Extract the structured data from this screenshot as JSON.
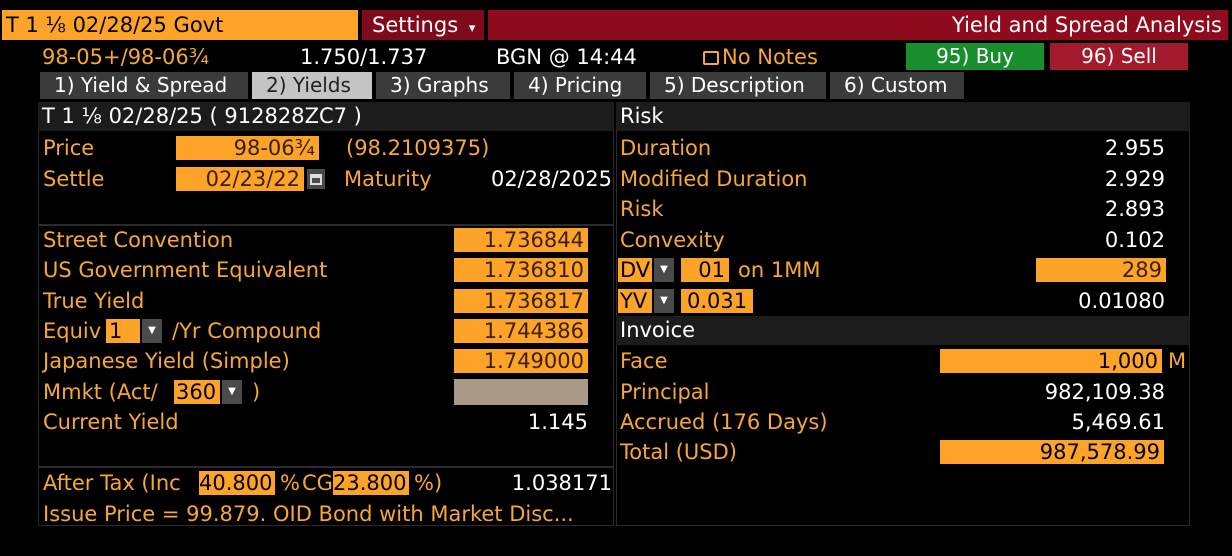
{
  "title_bar": {
    "security": "T 1 ⅛ 02/28/25 Govt",
    "settings_label": "Settings",
    "settings_arrow": "▾",
    "function_title": "Yield and Spread Analysis"
  },
  "quote_bar": {
    "bid_ask": "98-05+/98-06¾",
    "yields": "1.750/1.737",
    "source_time": "BGN @ 14:44",
    "notes": "No Notes",
    "buy_label": "95) Buy",
    "sell_label": "96) Sell"
  },
  "tabs": [
    {
      "label": "1) Yield & Spread"
    },
    {
      "label": "2) Yields",
      "active": true
    },
    {
      "label": "3) Graphs"
    },
    {
      "label": "4) Pricing"
    },
    {
      "label": "5) Description"
    },
    {
      "label": "6) Custom"
    }
  ],
  "bond_panel": {
    "header": "T 1 ⅛ 02/28/25 ( 912828ZC7 )",
    "price_label": "Price",
    "price_value": "98-06¾",
    "price_decimal": "(98.2109375)",
    "settle_label": "Settle",
    "settle_value": "02/23/22",
    "maturity_label": "Maturity",
    "maturity_value": "02/28/2025"
  },
  "yields": {
    "street_label": "Street Convention",
    "street_value": "1.736844",
    "usgov_label": "US Government Equivalent",
    "usgov_value": "1.736810",
    "true_label": "True Yield",
    "true_value": "1.736817",
    "equiv_label": "Equiv",
    "equiv_freq": "1",
    "equiv_suffix": "/Yr Compound",
    "equiv_value": "1.744386",
    "japanese_label": "Japanese Yield (Simple)",
    "japanese_value": "1.749000",
    "mmkt_label": "Mmkt (Act/",
    "mmkt_basis": "360",
    "mmkt_close": ")",
    "mmkt_value": "",
    "current_label": "Current Yield",
    "current_value": "1.145"
  },
  "tax": {
    "label_prefix": "After Tax (Inc",
    "inc_rate": "40.800",
    "pct1": "%",
    "cg_label": "CG",
    "cg_rate": "23.800",
    "pct2": "%)",
    "value": "1.038171",
    "issue_note": "Issue Price = 99.879. OID Bond with Market Disc..."
  },
  "risk": {
    "header": "Risk",
    "duration_label": "Duration",
    "duration_value": "2.955",
    "modified_label": "Modified Duration",
    "modified_value": "2.929",
    "risk_label": "Risk",
    "risk_value": "2.893",
    "convexity_label": "Convexity",
    "convexity_value": "0.102",
    "dv_label": "DV",
    "dv_bp": "01",
    "dv_suffix": "on 1MM",
    "dv_value": "289",
    "yv_label": "YV",
    "yv_input": "0.031",
    "yv_value": "0.01080"
  },
  "invoice": {
    "header": "Invoice",
    "face_label": "Face",
    "face_value": "1,000",
    "face_unit": "M",
    "principal_label": "Principal",
    "principal_value": "982,109.38",
    "accrued_label": "Accrued (176 Days)",
    "accrued_value": "5,469.61",
    "total_label": "Total  (USD)",
    "total_value": "987,578.99"
  },
  "colors": {
    "accent_orange": "#fda328",
    "label_orange": "#f7a738",
    "title_red": "#8e0c1d",
    "buy_green": "#188e2c",
    "sell_red": "#a41a2d"
  }
}
